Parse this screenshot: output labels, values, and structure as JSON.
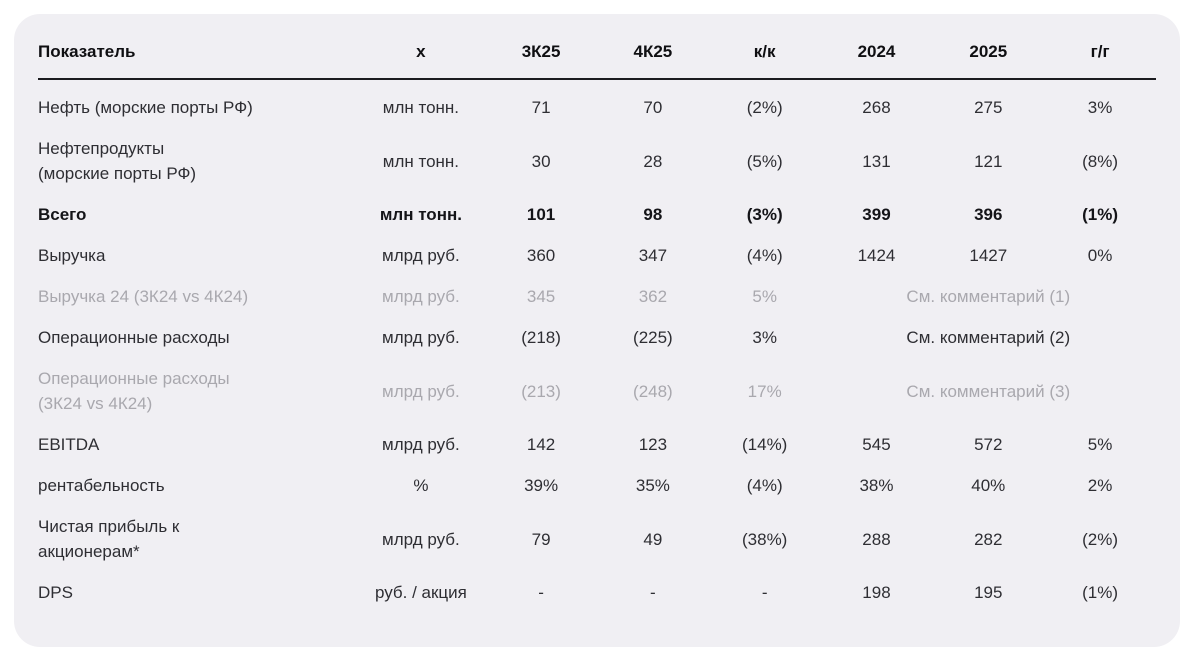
{
  "page": {
    "background": "#ffffff"
  },
  "card": {
    "background": "#f0eff3",
    "header_rule_color": "#1b1b1f",
    "text_color": "#2e2e33",
    "muted_color": "#a9a8ae"
  },
  "table": {
    "columns": [
      "Показатель",
      "x",
      "3К25",
      "4К25",
      "к/к",
      "2024",
      "2025",
      "г/г"
    ],
    "rows": [
      {
        "style": "normal",
        "cells": [
          "Нефть (морские порты РФ)",
          "млн тонн.",
          "71",
          "70",
          "(2%)",
          "268",
          "275",
          "3%"
        ]
      },
      {
        "style": "normal",
        "cells": [
          "Нефтепродукты\n(морские порты РФ)",
          "млн тонн.",
          "30",
          "28",
          "(5%)",
          "131",
          "121",
          "(8%)"
        ]
      },
      {
        "style": "bold",
        "cells": [
          "Всего",
          "млн тонн.",
          "101",
          "98",
          "(3%)",
          "399",
          "396",
          "(1%)"
        ]
      },
      {
        "style": "normal",
        "cells": [
          "Выручка",
          "млрд руб.",
          "360",
          "347",
          "(4%)",
          "1424",
          "1427",
          "0%"
        ]
      },
      {
        "style": "muted",
        "comment": "См. комментарий (1)",
        "cells": [
          "Выручка 24 (3К24 vs 4К24)",
          "млрд руб.",
          "345",
          "362",
          "5%"
        ]
      },
      {
        "style": "normal",
        "comment": "См. комментарий (2)",
        "cells": [
          "Операционные расходы",
          "млрд руб.",
          "(218)",
          "(225)",
          "3%"
        ]
      },
      {
        "style": "muted",
        "comment": "См. комментарий (3)",
        "cells": [
          "Операционные расходы\n(3К24 vs 4К24)",
          "млрд руб.",
          "(213)",
          "(248)",
          "17%"
        ]
      },
      {
        "style": "normal",
        "cells": [
          "EBITDA",
          "млрд руб.",
          "142",
          "123",
          "(14%)",
          "545",
          "572",
          "5%"
        ]
      },
      {
        "style": "normal",
        "cells": [
          "рентабельность",
          "%",
          "39%",
          "35%",
          "(4%)",
          "38%",
          "40%",
          "2%"
        ]
      },
      {
        "style": "normal",
        "cells": [
          "Чистая прибыль к\nакционерам*",
          "млрд руб.",
          "79",
          "49",
          "(38%)",
          "288",
          "282",
          "(2%)"
        ]
      },
      {
        "style": "normal",
        "cells": [
          "DPS",
          "руб. / акция",
          "-",
          "-",
          "-",
          "198",
          "195",
          "(1%)"
        ]
      }
    ]
  }
}
